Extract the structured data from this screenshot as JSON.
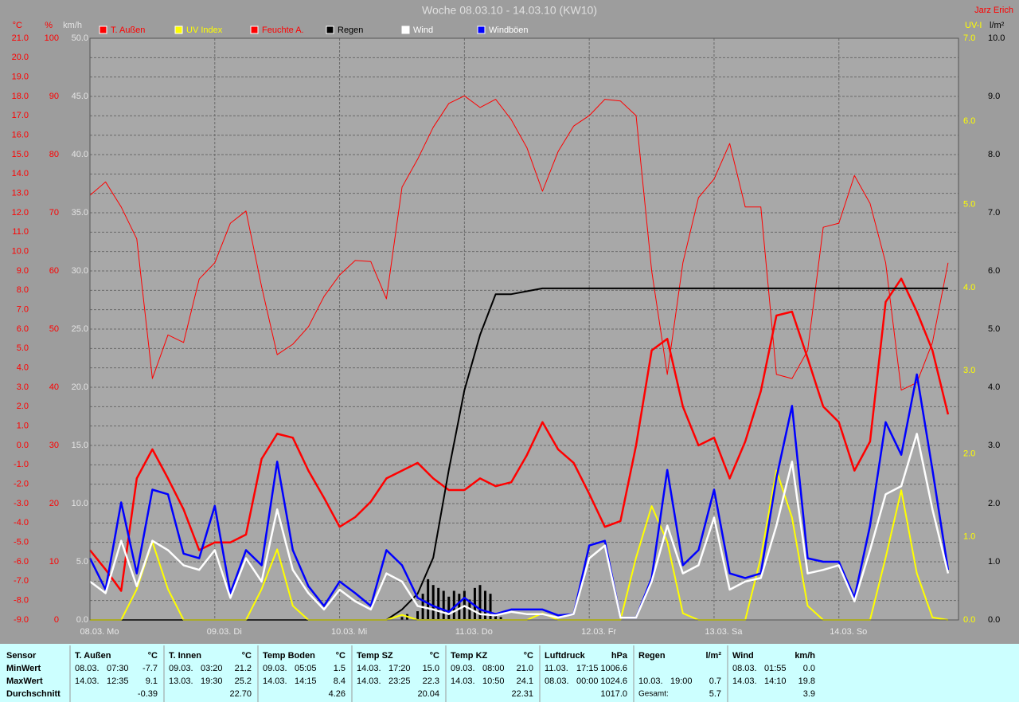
{
  "chart_data": {
    "type": "line",
    "title": "Woche 08.03.10 - 14.03.10 (KW10)",
    "credit": "Jarz Erich",
    "grid": true,
    "x": [
      0,
      3,
      6,
      9,
      12,
      15,
      18,
      21,
      24,
      27,
      30,
      33,
      36,
      39,
      42,
      45,
      48,
      51,
      54,
      57,
      60,
      63,
      66,
      69,
      72,
      75,
      78,
      81,
      84,
      87,
      90,
      93,
      96,
      99,
      102,
      105,
      108,
      111,
      114,
      117,
      120,
      123,
      126,
      129,
      132,
      135,
      138,
      141,
      144,
      147,
      150,
      153,
      156,
      159,
      162,
      165
    ],
    "xlim": [
      0,
      167
    ],
    "xticks": [
      {
        "value": 0,
        "label": "08.03. Mo"
      },
      {
        "value": 24,
        "label": "09.03. Di"
      },
      {
        "value": 48,
        "label": "10.03. Mi"
      },
      {
        "value": 72,
        "label": "11.03. Do"
      },
      {
        "value": 96,
        "label": "12.03. Fr"
      },
      {
        "value": 120,
        "label": "13.03. Sa"
      },
      {
        "value": 144,
        "label": "14.03. So"
      }
    ],
    "axes": [
      {
        "label": "°C",
        "side": "left",
        "color": "#ff0000",
        "lim": [
          -9,
          21
        ],
        "ticks": [
          {
            "value": -9,
            "label": "-9.0"
          },
          {
            "value": -8,
            "label": "-8.0"
          },
          {
            "value": -7,
            "label": "-7.0"
          },
          {
            "value": -6,
            "label": "-6.0"
          },
          {
            "value": -5,
            "label": "-5.0"
          },
          {
            "value": -4,
            "label": "-4.0"
          },
          {
            "value": -3,
            "label": "-3.0"
          },
          {
            "value": -2,
            "label": "-2.0"
          },
          {
            "value": -1,
            "label": "-1.0"
          },
          {
            "value": 0,
            "label": "0.0"
          },
          {
            "value": 1,
            "label": "1.0"
          },
          {
            "value": 2,
            "label": "2.0"
          },
          {
            "value": 3,
            "label": "3.0"
          },
          {
            "value": 4,
            "label": "4.0"
          },
          {
            "value": 5,
            "label": "5.0"
          },
          {
            "value": 6,
            "label": "6.0"
          },
          {
            "value": 7,
            "label": "7.0"
          },
          {
            "value": 8,
            "label": "8.0"
          },
          {
            "value": 9,
            "label": "9.0"
          },
          {
            "value": 10,
            "label": "10.0"
          },
          {
            "value": 11,
            "label": "11.0"
          },
          {
            "value": 12,
            "label": "12.0"
          },
          {
            "value": 13,
            "label": "13.0"
          },
          {
            "value": 14,
            "label": "14.0"
          },
          {
            "value": 15,
            "label": "15.0"
          },
          {
            "value": 16,
            "label": "16.0"
          },
          {
            "value": 17,
            "label": "17.0"
          },
          {
            "value": 18,
            "label": "18.0"
          },
          {
            "value": 19,
            "label": "19.0"
          },
          {
            "value": 20,
            "label": "20.0"
          },
          {
            "value": 21,
            "label": "21.0"
          }
        ]
      },
      {
        "label": "%",
        "side": "left",
        "color": "#ff0000",
        "lim": [
          0,
          100
        ],
        "ticks": [
          0,
          10,
          20,
          30,
          40,
          50,
          60,
          70,
          80,
          90,
          100
        ]
      },
      {
        "label": "km/h",
        "side": "left",
        "color": "#e4e4e4",
        "lim": [
          0,
          50
        ],
        "ticks": [
          {
            "value": 0,
            "label": "0.0"
          },
          {
            "value": 5,
            "label": "5.0"
          },
          {
            "value": 10,
            "label": "10.0"
          },
          {
            "value": 15,
            "label": "15.0"
          },
          {
            "value": 20,
            "label": "20.0"
          },
          {
            "value": 25,
            "label": "25.0"
          },
          {
            "value": 30,
            "label": "30.0"
          },
          {
            "value": 35,
            "label": "35.0"
          },
          {
            "value": 40,
            "label": "40.0"
          },
          {
            "value": 45,
            "label": "45.0"
          },
          {
            "value": 50,
            "label": "50.0"
          }
        ]
      },
      {
        "label": "UV-I",
        "side": "right",
        "color": "#ffff00",
        "lim": [
          0,
          7
        ],
        "ticks": [
          {
            "value": 0,
            "label": "0.0"
          },
          {
            "value": 1,
            "label": "1.0"
          },
          {
            "value": 2,
            "label": "2.0"
          },
          {
            "value": 3,
            "label": "3.0"
          },
          {
            "value": 4,
            "label": "4.0"
          },
          {
            "value": 5,
            "label": "5.0"
          },
          {
            "value": 6,
            "label": "6.0"
          },
          {
            "value": 7,
            "label": "7.0"
          }
        ]
      },
      {
        "label": "l/m²",
        "side": "right",
        "color": "#000000",
        "lim": [
          0,
          10
        ],
        "ticks": [
          {
            "value": 0,
            "label": "0.0"
          },
          {
            "value": 1,
            "label": "1.0"
          },
          {
            "value": 2,
            "label": "2.0"
          },
          {
            "value": 3,
            "label": "3.0"
          },
          {
            "value": 4,
            "label": "4.0"
          },
          {
            "value": 5,
            "label": "5.0"
          },
          {
            "value": 6,
            "label": "6.0"
          },
          {
            "value": 7,
            "label": "7.0"
          },
          {
            "value": 8,
            "label": "8.0"
          },
          {
            "value": 9,
            "label": "9.0"
          },
          {
            "value": 10,
            "label": "10.0"
          }
        ]
      }
    ],
    "series": [
      {
        "name": "T. Außen",
        "color": "#ff0000",
        "axis": 0,
        "line_width": 2.5,
        "values": [
          -5.4,
          -6.4,
          -7.5,
          -1.7,
          -0.2,
          -1.7,
          -3.3,
          -5.4,
          -5.0,
          -5.0,
          -4.6,
          -0.7,
          0.6,
          0.4,
          -1.3,
          -2.7,
          -4.2,
          -3.7,
          -2.9,
          -1.7,
          -1.3,
          -0.9,
          -1.7,
          -2.3,
          -2.3,
          -1.7,
          -2.1,
          -1.9,
          -0.5,
          1.2,
          -0.2,
          -0.9,
          -2.5,
          -4.2,
          -3.9,
          0.0,
          4.9,
          5.5,
          2.0,
          0.0,
          0.4,
          -1.7,
          0.2,
          2.8,
          6.7,
          6.9,
          4.5,
          2.0,
          1.2,
          -1.3,
          0.2,
          7.4,
          8.6,
          6.9,
          4.9,
          1.6
        ]
      },
      {
        "name": "UV Index",
        "color": "#ffff00",
        "axis": 3,
        "line_width": 2,
        "values": [
          0,
          0,
          0,
          0.37,
          0.94,
          0.37,
          0,
          0,
          0,
          0,
          0,
          0.37,
          0.85,
          0.17,
          0,
          0,
          0,
          0,
          0,
          0,
          0.06,
          0,
          0,
          0,
          0,
          0,
          0,
          0,
          0,
          0.08,
          0,
          0,
          0,
          0,
          0,
          0.75,
          1.37,
          0.94,
          0.08,
          0,
          0,
          0,
          0,
          0.75,
          1.8,
          1.23,
          0.17,
          0,
          0,
          0,
          0,
          0.75,
          1.56,
          0.56,
          0.03,
          0
        ]
      },
      {
        "name": "Feuchte A.",
        "color": "#ff0000",
        "axis": 1,
        "line_width": 1,
        "values": [
          73.0,
          75.3,
          71.0,
          65.5,
          41.5,
          49.0,
          47.7,
          58.6,
          61.4,
          68.2,
          70.3,
          57.3,
          45.6,
          47.4,
          50.4,
          55.6,
          59.3,
          61.8,
          61.6,
          55.2,
          74.4,
          79.2,
          84.7,
          88.8,
          90.1,
          88.1,
          89.5,
          86.0,
          81.2,
          73.7,
          80.5,
          84.9,
          86.7,
          89.5,
          89.2,
          86.7,
          60.0,
          42.2,
          61.4,
          72.6,
          75.8,
          81.9,
          71.0,
          71.0,
          42.2,
          41.5,
          46.3,
          67.5,
          68.2,
          76.4,
          71.6,
          61.4,
          39.5,
          40.8,
          47.7,
          61.4
        ]
      },
      {
        "name": "Regen",
        "color": "#000000",
        "axis": 4,
        "line_width": 2,
        "values": [
          0,
          0,
          0,
          0,
          0,
          0,
          0,
          0,
          0,
          0,
          0,
          0,
          0,
          0,
          0,
          0,
          0,
          0,
          0,
          0,
          0.18,
          0.45,
          1.07,
          2.58,
          3.95,
          4.9,
          5.6,
          5.6,
          5.65,
          5.7,
          5.7,
          5.7,
          5.7,
          5.7,
          5.7,
          5.7,
          5.7,
          5.7,
          5.7,
          5.7,
          5.7,
          5.7,
          5.7,
          5.7,
          5.7,
          5.7,
          5.7,
          5.7,
          5.7,
          5.7,
          5.7,
          5.7,
          5.7,
          5.7,
          5.7,
          5.7
        ],
        "bars": {
          "x": [
            60,
            61,
            62,
            63,
            64,
            65,
            66,
            67,
            68,
            69,
            70,
            71,
            72,
            73,
            74,
            75,
            76,
            77,
            78,
            79
          ],
          "values": [
            0.05,
            0.1,
            0.0,
            0.15,
            0.45,
            0.7,
            0.6,
            0.55,
            0.5,
            0.4,
            0.5,
            0.45,
            0.5,
            0.35,
            0.55,
            0.6,
            0.5,
            0.45,
            0.1,
            0.05
          ]
        }
      },
      {
        "name": "Wind",
        "color": "#ffffff",
        "axis": 2,
        "line_width": 2.5,
        "values": [
          3.3,
          2.3,
          6.8,
          2.9,
          6.8,
          6.0,
          4.7,
          4.3,
          6.0,
          1.9,
          5.3,
          3.3,
          9.5,
          4.3,
          2.3,
          0.9,
          2.6,
          1.6,
          0.9,
          4.0,
          3.3,
          1.2,
          0.9,
          0.5,
          1.2,
          0.5,
          0.4,
          0.7,
          0.5,
          0.5,
          0.2,
          0.5,
          5.3,
          6.4,
          0.2,
          0.2,
          3.3,
          8.1,
          4.0,
          4.7,
          8.8,
          2.6,
          3.3,
          3.6,
          8.1,
          13.6,
          4.0,
          4.3,
          4.7,
          1.6,
          6.0,
          10.8,
          11.5,
          16.0,
          9.5,
          4.0
        ]
      },
      {
        "name": "Windböen",
        "color": "#0000ff",
        "axis": 2,
        "line_width": 2.5,
        "values": [
          5.3,
          2.6,
          10.1,
          4.0,
          11.2,
          10.8,
          5.7,
          5.3,
          9.8,
          2.3,
          6.0,
          4.7,
          13.6,
          6.0,
          2.9,
          1.2,
          3.3,
          2.3,
          1.2,
          6.0,
          4.7,
          1.9,
          1.2,
          0.7,
          1.9,
          0.9,
          0.5,
          0.9,
          0.9,
          0.9,
          0.4,
          0.5,
          6.4,
          6.8,
          0.2,
          0.2,
          3.6,
          12.9,
          4.7,
          6.0,
          11.2,
          4.0,
          3.6,
          4.0,
          12.2,
          18.4,
          5.3,
          5.0,
          5.0,
          1.9,
          8.1,
          17.0,
          14.2,
          21.1,
          12.9,
          4.3
        ]
      }
    ]
  },
  "table": {
    "row_labels": [
      "Sensor",
      "MinWert",
      "MaxWert",
      "Durchschnitt"
    ],
    "columns": [
      {
        "name": "T. Außen",
        "unit": "°C",
        "min": [
          "08.03.",
          "07:30",
          "-7.7"
        ],
        "max": [
          "14.03.",
          "12:35",
          "9.1"
        ],
        "avg": [
          "-0.39"
        ]
      },
      {
        "name": "T. Innen",
        "unit": "°C",
        "min": [
          "09.03.",
          "03:20",
          "21.2"
        ],
        "max": [
          "13.03.",
          "19:30",
          "25.2"
        ],
        "avg": [
          "22.70"
        ]
      },
      {
        "name": "Temp Boden",
        "unit": "°C",
        "min": [
          "09.03.",
          "05:05",
          "1.5"
        ],
        "max": [
          "14.03.",
          "14:15",
          "8.4"
        ],
        "avg": [
          "4.26"
        ]
      },
      {
        "name": "Temp SZ",
        "unit": "°C",
        "min": [
          "14.03.",
          "17:20",
          "15.0"
        ],
        "max": [
          "14.03.",
          "23:25",
          "22.3"
        ],
        "avg": [
          "20.04"
        ]
      },
      {
        "name": "Temp KZ",
        "unit": "°C",
        "min": [
          "09.03.",
          "08:00",
          "21.0"
        ],
        "max": [
          "14.03.",
          "10:50",
          "24.1"
        ],
        "avg": [
          "22.31"
        ]
      },
      {
        "name": "Luftdruck",
        "unit": "hPa",
        "min": [
          "11.03.",
          "17:15",
          "1006.6"
        ],
        "max": [
          "08.03.",
          "00:00",
          "1024.6"
        ],
        "avg": [
          "1017.0"
        ]
      },
      {
        "name": "Regen",
        "unit": "l/m²",
        "max": [
          "10.03.",
          "19:00",
          "0.7"
        ],
        "avg": [
          "Gesamt:",
          "5.7"
        ]
      },
      {
        "name": "Wind",
        "unit": "km/h",
        "min": [
          "08.03.",
          "01:55",
          "0.0"
        ],
        "max": [
          "14.03.",
          "14:10",
          "19.8"
        ],
        "avg": [
          "3.9"
        ]
      }
    ]
  }
}
